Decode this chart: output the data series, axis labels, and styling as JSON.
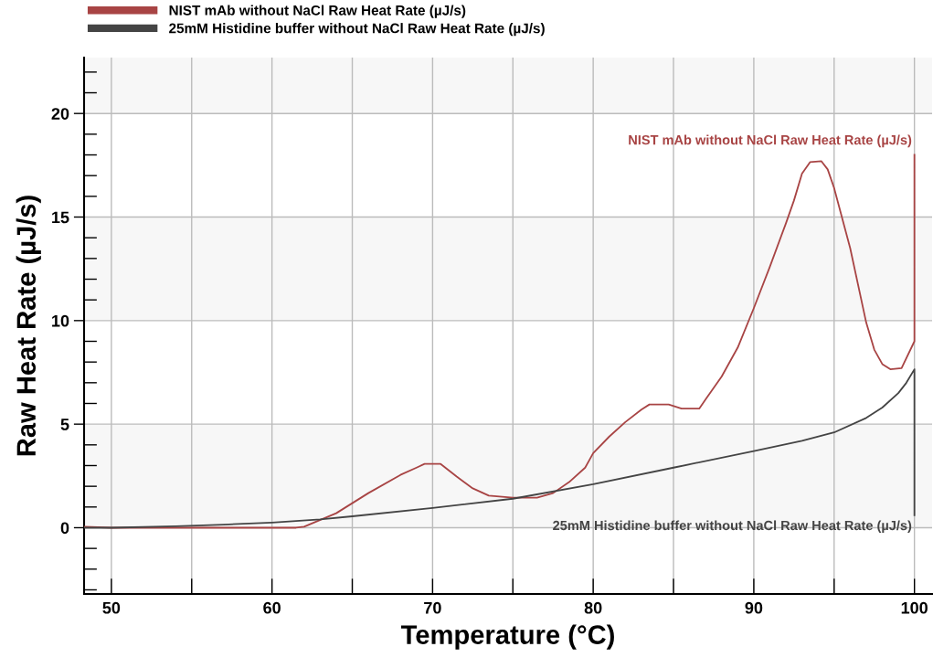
{
  "chart_data": {
    "type": "line",
    "xlabel": "Temperature (°C)",
    "ylabel": "Raw Heat Rate (µJ/s)",
    "xlim": [
      48.3,
      101.1
    ],
    "ylim": [
      -3.2,
      22.7
    ],
    "xticks": [
      50,
      {
        "value": 55,
        "label": null
      },
      60,
      {
        "value": 65,
        "label": null
      },
      70,
      {
        "value": 75,
        "label": null
      },
      80,
      {
        "value": 85,
        "label": null
      },
      90,
      {
        "value": 95,
        "label": null
      },
      100
    ],
    "yticks": [
      0,
      5,
      10,
      15,
      20
    ],
    "grid": true,
    "legend": "top left",
    "line_style": "solid",
    "marker": "none",
    "bands": [
      {
        "axis": "y",
        "from": 0,
        "to": 5,
        "color": "#f7f7f7"
      },
      {
        "axis": "y",
        "from": 10,
        "to": 15,
        "color": "#f7f7f7"
      },
      {
        "axis": "y",
        "from": 20,
        "to": 22.7,
        "color": "#f7f7f7"
      }
    ],
    "series": [
      {
        "name": "NIST mAb without NaCl Raw Heat Rate (µJ/s)",
        "color": "#a84444",
        "x": [
          48.3,
          50,
          55,
          60,
          61.5,
          62,
          64,
          66,
          68,
          69,
          69.5,
          70.5,
          71.5,
          72.5,
          73.5,
          75,
          76.5,
          77.5,
          78.5,
          79.5,
          80,
          81,
          82,
          83,
          83.5,
          84.7,
          85.5,
          86.6,
          87,
          88,
          89,
          90,
          91,
          92,
          92.5,
          93,
          93.5,
          94.2,
          94.6,
          95,
          96,
          97,
          97.5,
          98,
          98.5,
          99.2,
          100,
          100
        ],
        "values": [
          0.05,
          0,
          0,
          0,
          0,
          0.05,
          0.7,
          1.67,
          2.55,
          2.9,
          3.08,
          3.08,
          2.47,
          1.9,
          1.55,
          1.45,
          1.45,
          1.67,
          2.2,
          2.9,
          3.6,
          4.4,
          5.1,
          5.7,
          5.95,
          5.95,
          5.75,
          5.75,
          6.2,
          7.3,
          8.7,
          10.6,
          12.6,
          14.7,
          15.8,
          17.1,
          17.65,
          17.7,
          17.3,
          16.4,
          13.5,
          9.9,
          8.6,
          7.9,
          7.65,
          7.7,
          9.0,
          18.0
        ]
      },
      {
        "name": "25mM Histidine buffer without NaCl Raw Heat Rate (µJ/s)",
        "color": "#444444",
        "x": [
          48.3,
          50,
          54,
          57,
          60,
          63,
          65,
          70,
          75,
          80,
          85,
          90,
          93,
          95,
          97,
          98,
          99,
          99.5,
          100,
          100
        ],
        "values": [
          0,
          0,
          0.07,
          0.15,
          0.25,
          0.4,
          0.55,
          0.95,
          1.4,
          2.1,
          2.9,
          3.7,
          4.2,
          4.6,
          5.3,
          5.8,
          6.5,
          7.0,
          7.65,
          0.6
        ]
      }
    ],
    "annotations": [
      "NIST mAb without NaCl Raw Heat Rate (µJ/s)",
      "25mM Histidine buffer without NaCl Raw Heat Rate (µJ/s)"
    ]
  }
}
